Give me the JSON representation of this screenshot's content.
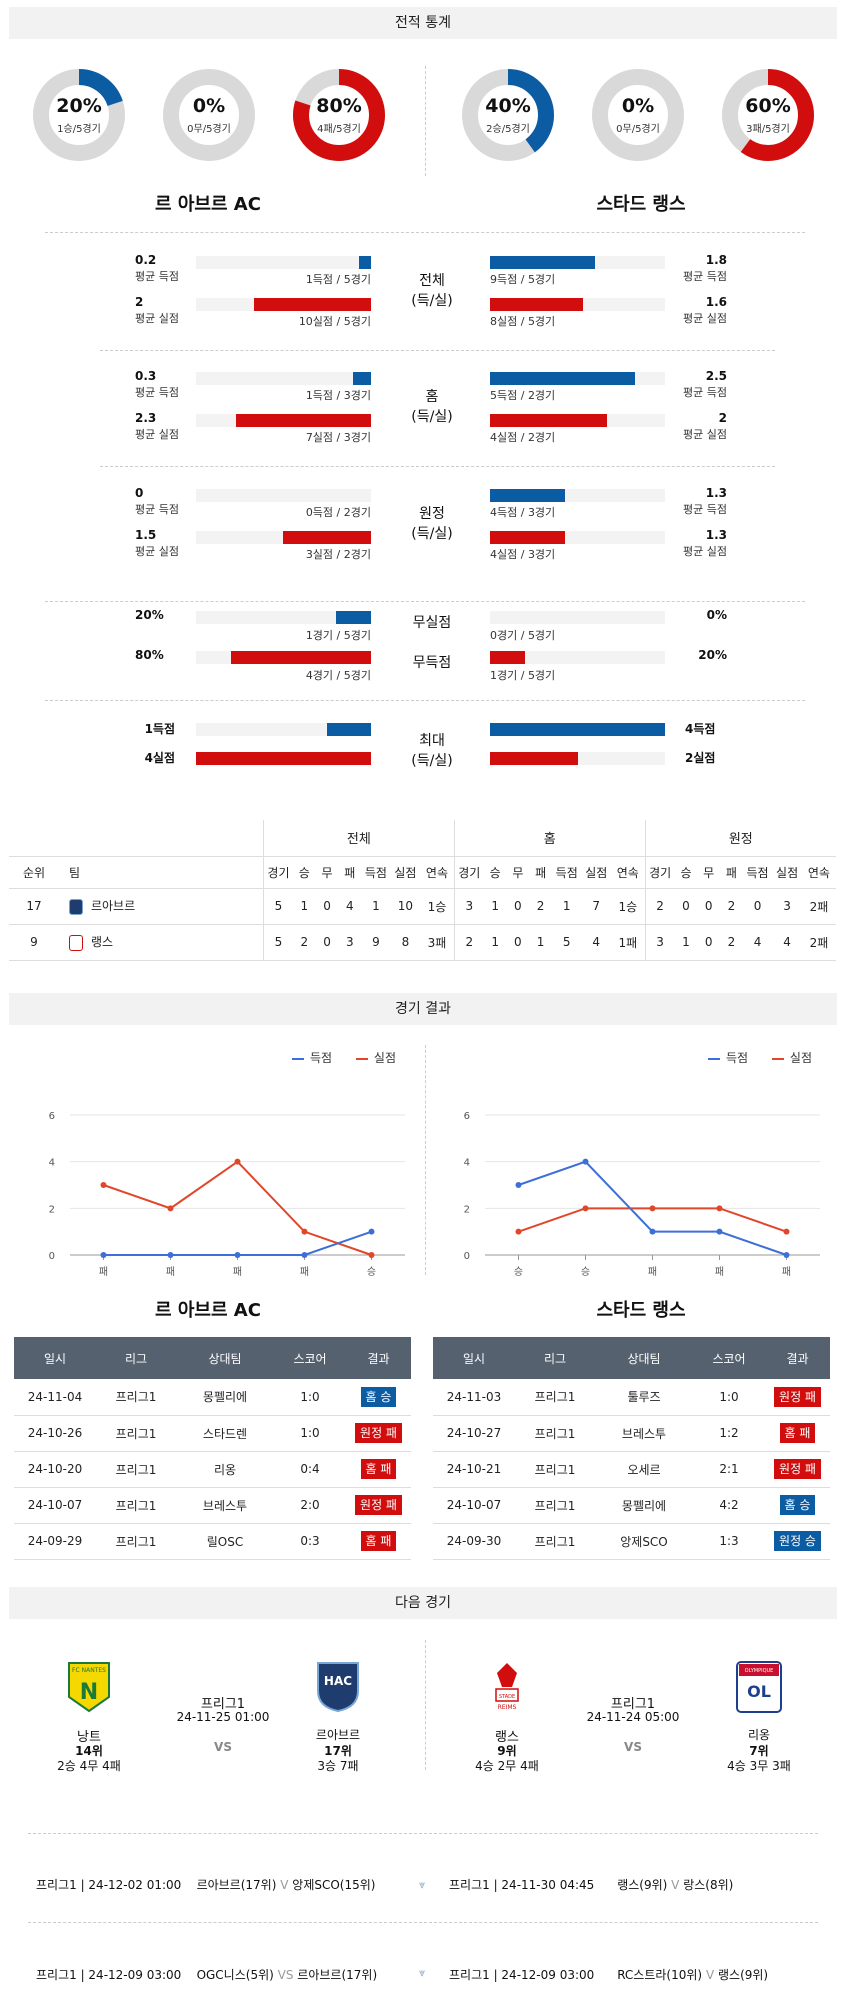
{
  "sections": {
    "stats": "전적 통계",
    "results": "경기 결과",
    "next": "다음 경기"
  },
  "teams": {
    "left": "르 아브르 AC",
    "right": "스타드 랭스"
  },
  "donuts": [
    {
      "pct": "20%",
      "sub": "1승/5경기",
      "frac": 0.2,
      "color": "#0c5ca4"
    },
    {
      "pct": "0%",
      "sub": "0무/5경기",
      "frac": 0,
      "color": "#888888"
    },
    {
      "pct": "80%",
      "sub": "4패/5경기",
      "frac": 0.8,
      "color": "#d10d0d"
    },
    {
      "pct": "40%",
      "sub": "2승/5경기",
      "frac": 0.4,
      "color": "#0c5ca4"
    },
    {
      "pct": "0%",
      "sub": "0무/5경기",
      "frac": 0,
      "color": "#888888"
    },
    {
      "pct": "60%",
      "sub": "3패/5경기",
      "frac": 0.6,
      "color": "#d10d0d"
    }
  ],
  "stat_rows": [
    {
      "cat1": "전체",
      "cat2": "(득/실)",
      "left": [
        {
          "val": "0.2",
          "lbl": "평균 득점",
          "cap": "1득점 / 5경기",
          "frac": 0.07,
          "color": "blue"
        },
        {
          "val": "2",
          "lbl": "평균 실점",
          "cap": "10실점 / 5경기",
          "frac": 0.67,
          "color": "red"
        }
      ],
      "right": [
        {
          "val": "1.8",
          "lbl": "평균 득점",
          "cap": "9득점 / 5경기",
          "frac": 0.6,
          "color": "blue"
        },
        {
          "val": "1.6",
          "lbl": "평균 실점",
          "cap": "8실점 / 5경기",
          "frac": 0.53,
          "color": "red"
        }
      ]
    },
    {
      "cat1": "홈",
      "cat2": "(득/실)",
      "left": [
        {
          "val": "0.3",
          "lbl": "평균 득점",
          "cap": "1득점 / 3경기",
          "frac": 0.1,
          "color": "blue"
        },
        {
          "val": "2.3",
          "lbl": "평균 실점",
          "cap": "7실점 / 3경기",
          "frac": 0.77,
          "color": "red"
        }
      ],
      "right": [
        {
          "val": "2.5",
          "lbl": "평균 득점",
          "cap": "5득점 / 2경기",
          "frac": 0.83,
          "color": "blue"
        },
        {
          "val": "2",
          "lbl": "평균 실점",
          "cap": "4실점 / 2경기",
          "frac": 0.67,
          "color": "red"
        }
      ]
    },
    {
      "cat1": "원정",
      "cat2": "(득/실)",
      "left": [
        {
          "val": "0",
          "lbl": "평균 득점",
          "cap": "0득점 / 2경기",
          "frac": 0,
          "color": "blue"
        },
        {
          "val": "1.5",
          "lbl": "평균 실점",
          "cap": "3실점 / 2경기",
          "frac": 0.5,
          "color": "red"
        }
      ],
      "right": [
        {
          "val": "1.3",
          "lbl": "평균 득점",
          "cap": "4득점 / 3경기",
          "frac": 0.43,
          "color": "blue"
        },
        {
          "val": "1.3",
          "lbl": "평균 실점",
          "cap": "4실점 / 3경기",
          "frac": 0.43,
          "color": "red"
        }
      ]
    }
  ],
  "clean": {
    "cat_clean": "무실점",
    "cat_fail": "무득점",
    "left_clean": {
      "val": "20%",
      "cap": "1경기 / 5경기",
      "frac": 0.2
    },
    "left_fail": {
      "val": "80%",
      "cap": "4경기 / 5경기",
      "frac": 0.8
    },
    "right_clean": {
      "val": "0%",
      "cap": "0경기 / 5경기",
      "frac": 0
    },
    "right_fail": {
      "val": "20%",
      "cap": "1경기 / 5경기",
      "frac": 0.2
    }
  },
  "max": {
    "cat1": "최대",
    "cat2": "(득/실)",
    "left_score": {
      "val": "1득점",
      "frac": 0.25
    },
    "left_concede": {
      "val": "4실점",
      "frac": 1
    },
    "right_score": {
      "val": "4득점",
      "frac": 1
    },
    "right_concede": {
      "val": "2실점",
      "frac": 0.5
    }
  },
  "standings": {
    "groups": [
      "전체",
      "홈",
      "원정"
    ],
    "headers": [
      "순위",
      "팀",
      "경기",
      "승",
      "무",
      "패",
      "득점",
      "실점",
      "연속",
      "경기",
      "승",
      "무",
      "패",
      "득점",
      "실점",
      "연속",
      "경기",
      "승",
      "무",
      "패",
      "득점",
      "실점",
      "연속"
    ],
    "rows": [
      [
        "17",
        "르아브르",
        "5",
        "1",
        "0",
        "4",
        "1",
        "10",
        "1승",
        "3",
        "1",
        "0",
        "2",
        "1",
        "7",
        "1승",
        "2",
        "0",
        "0",
        "2",
        "0",
        "3",
        "2패"
      ],
      [
        "9",
        "랭스",
        "5",
        "2",
        "0",
        "3",
        "9",
        "8",
        "3패",
        "2",
        "1",
        "0",
        "1",
        "5",
        "4",
        "1패",
        "3",
        "1",
        "0",
        "2",
        "4",
        "4",
        "2패"
      ]
    ]
  },
  "charts": {
    "legend_score": "득점",
    "legend_concede": "실점",
    "y_ticks": [
      "0",
      "2",
      "4",
      "6"
    ],
    "left": {
      "categories": [
        "패",
        "패",
        "패",
        "패",
        "승"
      ],
      "score": [
        0,
        0,
        0,
        0,
        1
      ],
      "concede": [
        3,
        2,
        4,
        1,
        0
      ]
    },
    "right": {
      "categories": [
        "승",
        "승",
        "패",
        "패",
        "패"
      ],
      "score": [
        3,
        4,
        1,
        1,
        0
      ],
      "concede": [
        1,
        2,
        2,
        2,
        1
      ]
    }
  },
  "chart_data": [
    {
      "type": "line",
      "categories": [
        "패",
        "패",
        "패",
        "패",
        "승"
      ],
      "series": [
        {
          "name": "득점",
          "values": [
            0,
            0,
            0,
            0,
            1
          ]
        },
        {
          "name": "실점",
          "values": [
            3,
            2,
            4,
            1,
            0
          ]
        }
      ],
      "ylim": [
        0,
        6
      ]
    },
    {
      "type": "line",
      "categories": [
        "승",
        "승",
        "패",
        "패",
        "패"
      ],
      "series": [
        {
          "name": "득점",
          "values": [
            3,
            4,
            1,
            1,
            0
          ]
        },
        {
          "name": "실점",
          "values": [
            1,
            2,
            2,
            2,
            1
          ]
        }
      ],
      "ylim": [
        0,
        6
      ]
    }
  ],
  "results": {
    "headers": [
      "일시",
      "리그",
      "상대팀",
      "스코어",
      "결과"
    ],
    "left": [
      {
        "date": "24-11-04",
        "league": "프리그1",
        "opp": "몽펠리에",
        "score": "1:0",
        "result": "홈 승",
        "color": "#0c5ca4"
      },
      {
        "date": "24-10-26",
        "league": "프리그1",
        "opp": "스타드렌",
        "score": "1:0",
        "result": "원정 패",
        "color": "#d10d0d"
      },
      {
        "date": "24-10-20",
        "league": "프리그1",
        "opp": "리옹",
        "score": "0:4",
        "result": "홈 패",
        "color": "#d10d0d"
      },
      {
        "date": "24-10-07",
        "league": "프리그1",
        "opp": "브레스투",
        "score": "2:0",
        "result": "원정 패",
        "color": "#d10d0d"
      },
      {
        "date": "24-09-29",
        "league": "프리그1",
        "opp": "릴OSC",
        "score": "0:3",
        "result": "홈 패",
        "color": "#d10d0d"
      }
    ],
    "right": [
      {
        "date": "24-11-03",
        "league": "프리그1",
        "opp": "툴루즈",
        "score": "1:0",
        "result": "원정 패",
        "color": "#d10d0d"
      },
      {
        "date": "24-10-27",
        "league": "프리그1",
        "opp": "브레스투",
        "score": "1:2",
        "result": "홈 패",
        "color": "#d10d0d"
      },
      {
        "date": "24-10-21",
        "league": "프리그1",
        "opp": "오세르",
        "score": "2:1",
        "result": "원정 패",
        "color": "#d10d0d"
      },
      {
        "date": "24-10-07",
        "league": "프리그1",
        "opp": "몽펠리에",
        "score": "4:2",
        "result": "홈 승",
        "color": "#0c5ca4"
      },
      {
        "date": "24-09-30",
        "league": "프리그1",
        "opp": "앙제SCO",
        "score": "1:3",
        "result": "원정 승",
        "color": "#0c5ca4"
      }
    ]
  },
  "next": {
    "left": {
      "home": "낭트",
      "home_rank": "14위",
      "home_rec": "2승 4무 4패",
      "away": "르아브르",
      "away_rank": "17위",
      "away_rec": "3승 7패",
      "league": "프리그1",
      "time": "24-11-25 01:00",
      "vs": "VS"
    },
    "right": {
      "home": "랭스",
      "home_rank": "9위",
      "home_rec": "4승 2무 4패",
      "away": "리옹",
      "away_rank": "7위",
      "away_rec": "4승 3무 3패",
      "league": "프리그1",
      "time": "24-11-24 05:00",
      "vs": "VS"
    },
    "logos": {
      "nantes": "FC NANTES",
      "hac": "HAC",
      "reims": "STADE REIMS",
      "lyon": "OLYMPIQUE LYONNAIS"
    }
  },
  "upcoming": [
    {
      "left": {
        "info": "프리그1 | 24-12-02 01:00",
        "home": "르아브르(17위)",
        "vs": "V",
        "away": "앙제SCO(15위)"
      },
      "right": {
        "info": "프리그1 | 24-11-30 04:45",
        "home": "랭스(9위)",
        "vs": "V",
        "away": "랑스(8위)"
      }
    },
    {
      "left": {
        "info": "프리그1 | 24-12-09 03:00",
        "home": "OGC니스(5위)",
        "vs": "VS",
        "away": "르아브르(17위)"
      },
      "right": {
        "info": "프리그1 | 24-12-09 03:00",
        "home": "RC스트라(10위)",
        "vs": "V",
        "away": "랭스(9위)"
      }
    }
  ]
}
